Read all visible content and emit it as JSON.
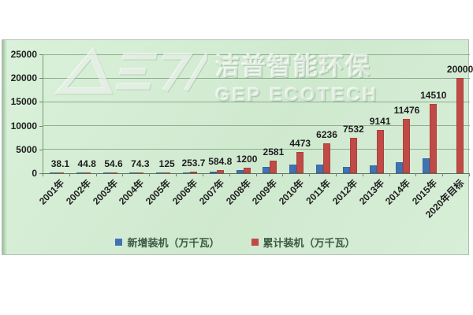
{
  "watermark": {
    "line1": "洁普智能环保",
    "line2": "GEP ECOTECH",
    "logo": "gep-logo"
  },
  "chart_data": {
    "type": "bar",
    "title": "",
    "categories": [
      "2001年",
      "2002年",
      "2003年",
      "2004年",
      "2005年",
      "2006年",
      "2007年",
      "2008年",
      "2009年",
      "2010年",
      "2011年",
      "2012年",
      "2013年",
      "2014年",
      "2015年",
      "2020年目标"
    ],
    "series": [
      {
        "name": "新增装机（万千瓦）",
        "color": "#4173b3",
        "labels_shown": false,
        "values": [
          4,
          7,
          10,
          20,
          50,
          134,
          330,
          615,
          1380,
          1890,
          1760,
          1300,
          1610,
          2335,
          3100,
          null
        ]
      },
      {
        "name": "累计装机（万千瓦）",
        "color": "#c04b46",
        "labels_shown": true,
        "values": [
          38.1,
          44.8,
          54.6,
          74.3,
          125,
          253.7,
          584.8,
          1200,
          2581,
          4473,
          6236,
          7532,
          9141,
          11476,
          14510,
          20000
        ],
        "data_labels": [
          "38.1",
          "44.8",
          "54.6",
          "74.3",
          "125",
          "253.7",
          "584.8",
          "1200",
          "2581",
          "4473",
          "6236",
          "7532",
          "9141",
          "11476",
          "14510",
          "20000"
        ]
      }
    ],
    "xlabel": "",
    "ylabel": "",
    "ylim": [
      0,
      25000
    ],
    "yticks": [
      0,
      5000,
      10000,
      15000,
      20000,
      25000
    ],
    "ytick_labels": [
      "0",
      "5000",
      "10000",
      "15000",
      "20000",
      "25000"
    ],
    "x_tick_rotation": 45,
    "grid": true,
    "legend_position": "bottom",
    "plot_background": "#d4ecd4",
    "gridline_color": "#8fad8f"
  }
}
